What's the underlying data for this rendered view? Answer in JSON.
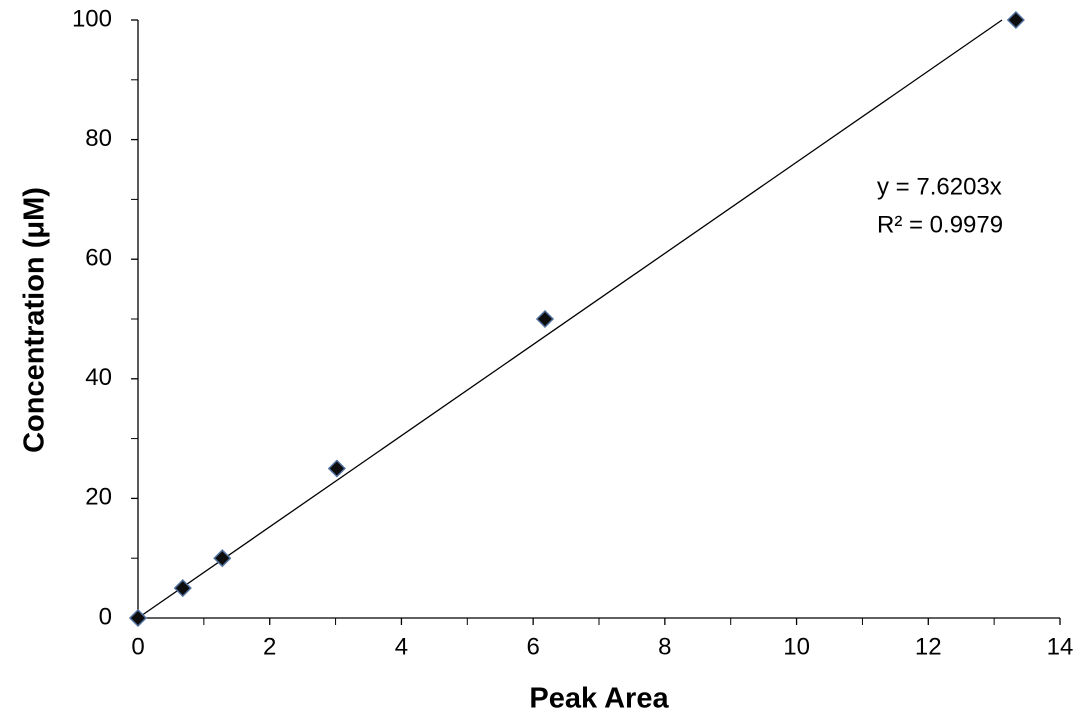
{
  "chart_data": {
    "type": "scatter",
    "xlabel": "Peak Area",
    "ylabel": "Concentration (μM)",
    "series": [
      {
        "x": [
          0,
          0.68,
          1.28,
          3.02,
          6.18,
          13.33
        ],
        "values": [
          0,
          5,
          10,
          25,
          50,
          100
        ],
        "color": "#0d0d0d",
        "edge_color": "#4f6f9c"
      }
    ],
    "trendline": {
      "x": [
        0,
        13.12
      ],
      "values": [
        0,
        100
      ],
      "color": "#000000"
    },
    "annotations": [
      "y = 7.6203x",
      "R² = 0.9979"
    ],
    "xlim": [
      0,
      14
    ],
    "ylim": [
      0,
      100
    ],
    "xticks": [
      0,
      2,
      4,
      6,
      8,
      10,
      12,
      14
    ],
    "yticks": [
      0,
      20,
      40,
      60,
      80,
      100
    ],
    "xminorticks": [
      1,
      3,
      5,
      7,
      9,
      11,
      13
    ],
    "yminorticks": [
      10,
      30,
      50,
      70,
      90
    ],
    "grid": false
  }
}
